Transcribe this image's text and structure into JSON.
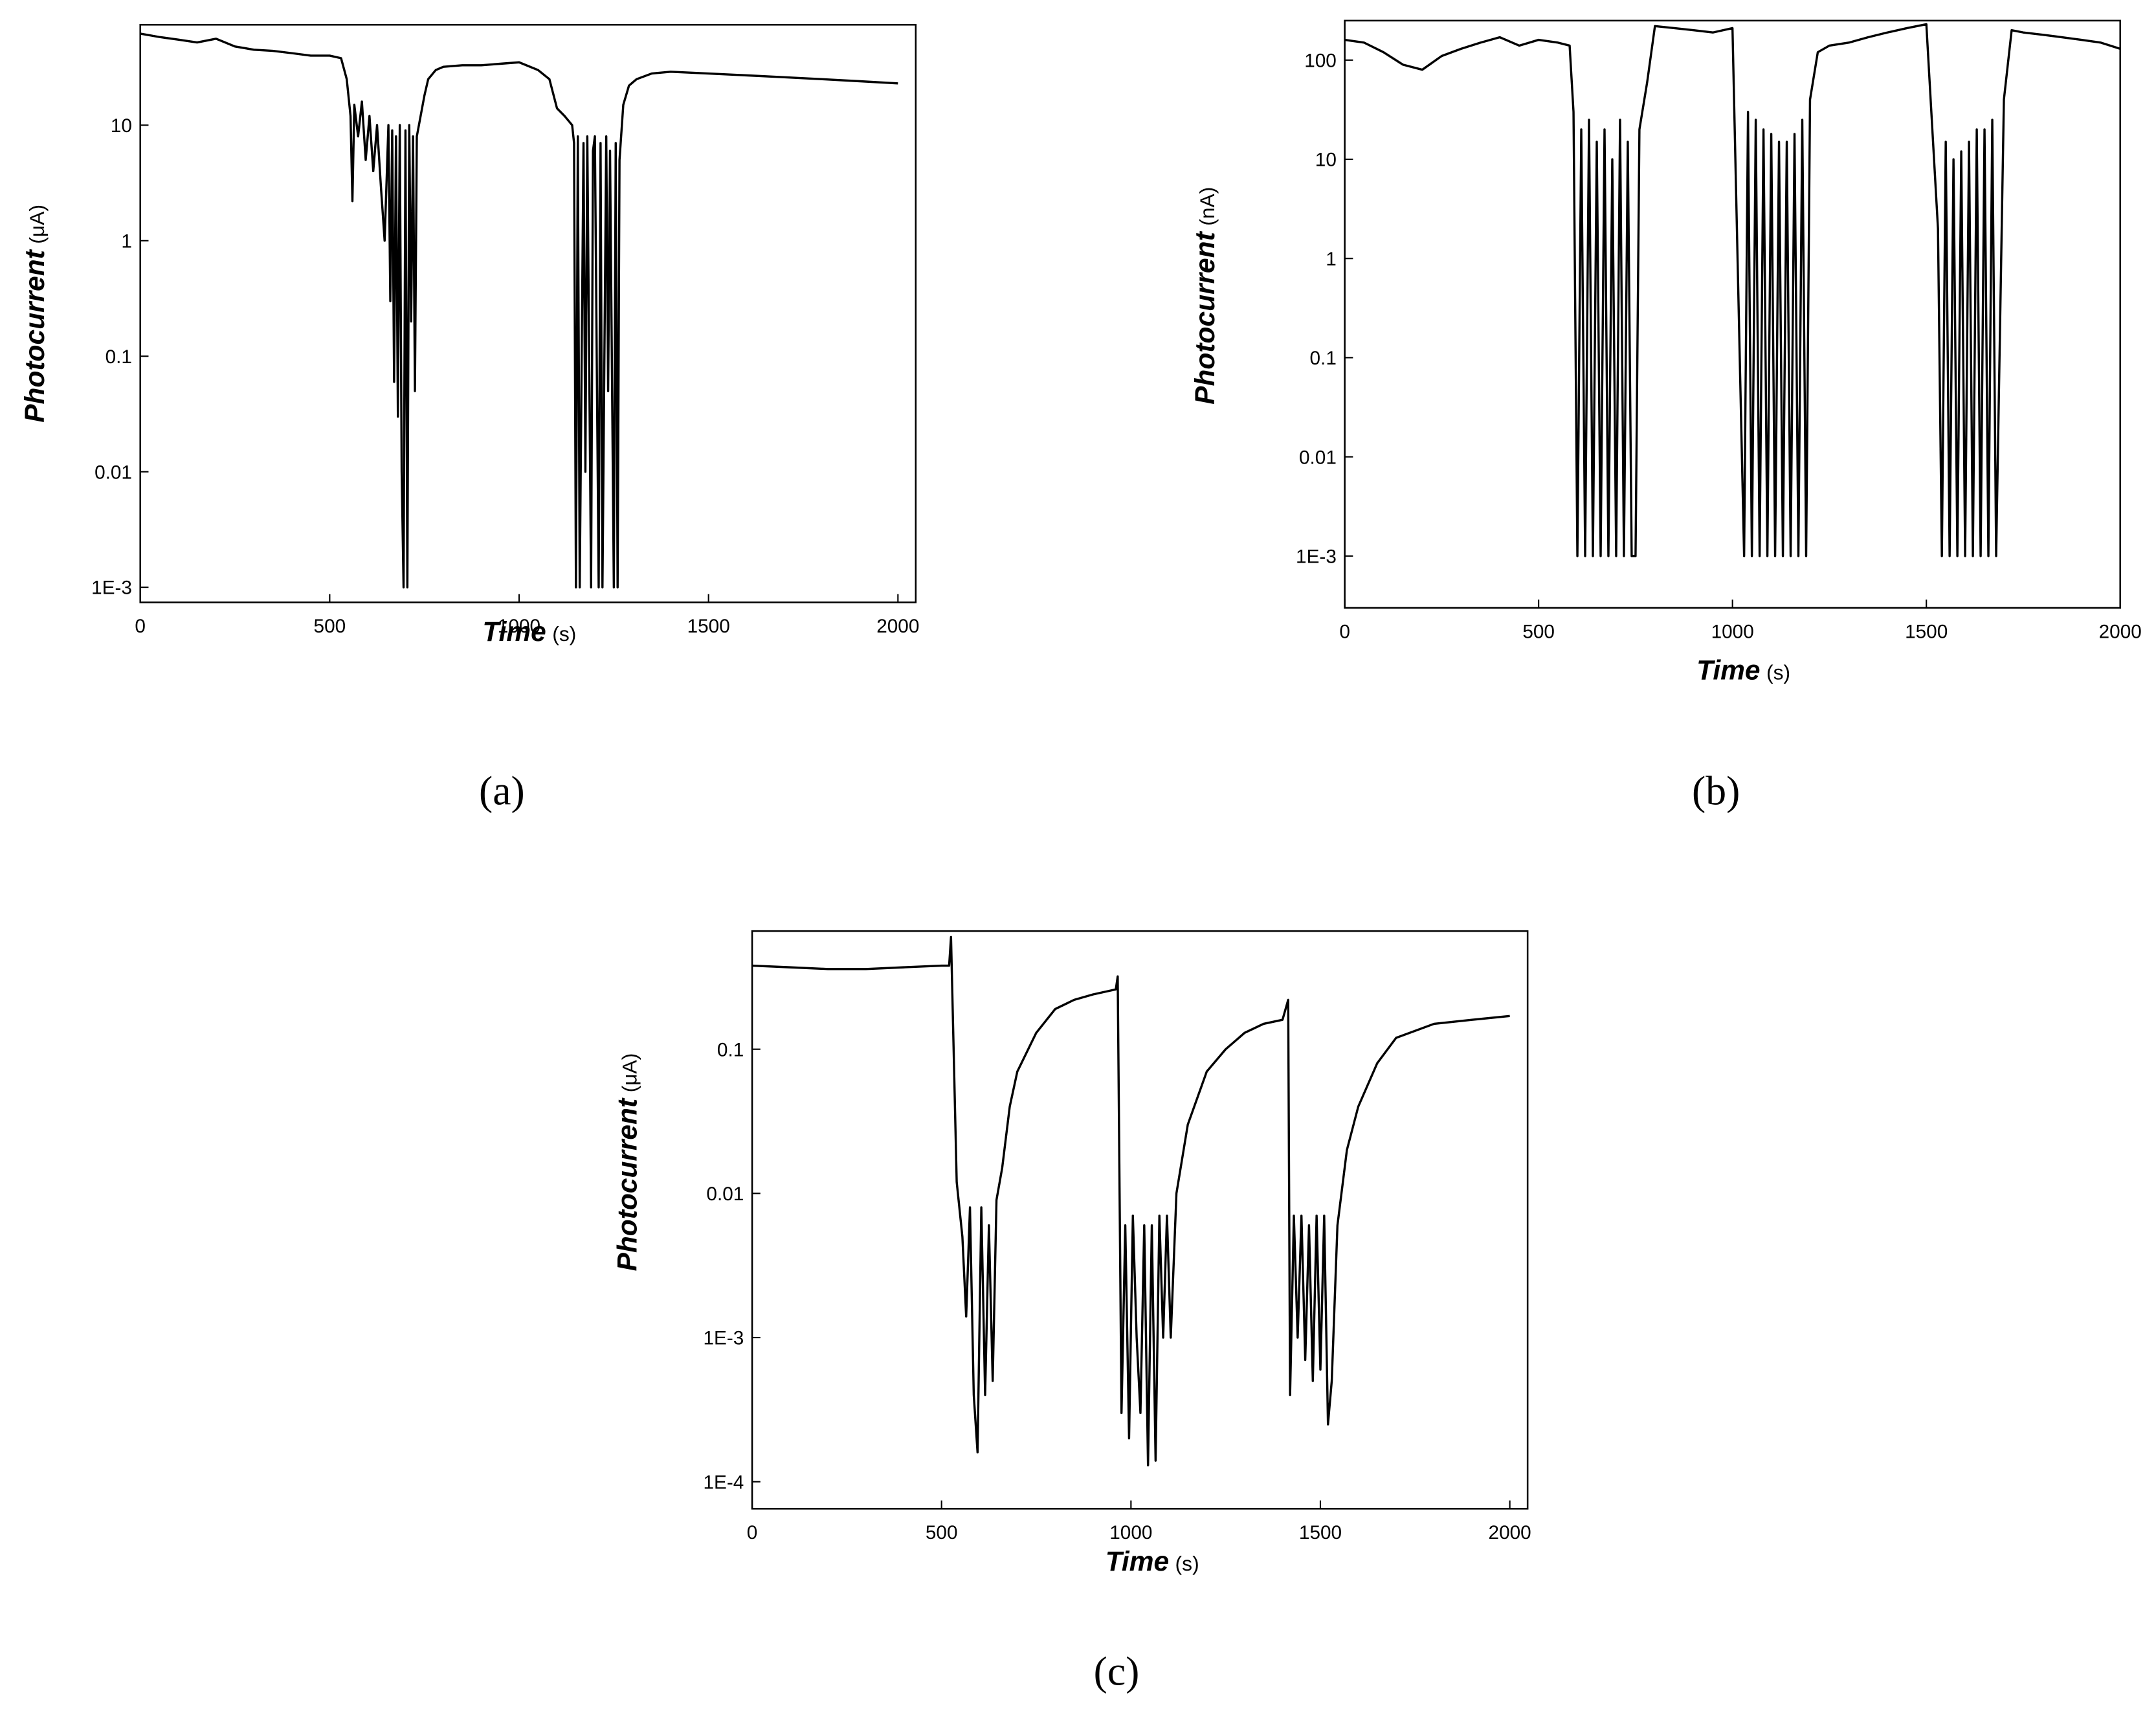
{
  "chart_data": [
    {
      "type": "line",
      "panel_label": "(a)",
      "xlabel": "Time",
      "xunit": "(s)",
      "ylabel": "Photocurrent",
      "yunit": "(μA)",
      "ylog": true,
      "color": "#000000",
      "xlim": [
        0,
        2047
      ],
      "xticks": [
        0,
        500,
        1000,
        1500,
        2000
      ],
      "ylim": [
        0.00074,
        74
      ],
      "yticks": [
        {
          "value": 0.001,
          "label": "1E-3"
        },
        0.01,
        0.1,
        1,
        10
      ],
      "x": [
        0,
        50,
        100,
        150,
        200,
        250,
        300,
        350,
        400,
        450,
        500,
        530,
        545,
        555,
        560,
        565,
        575,
        585,
        595,
        605,
        615,
        625,
        635,
        645,
        655,
        660,
        665,
        670,
        675,
        680,
        685,
        690,
        695,
        700,
        705,
        710,
        715,
        720,
        725,
        730,
        740,
        750,
        760,
        780,
        800,
        850,
        900,
        950,
        1000,
        1050,
        1080,
        1100,
        1120,
        1140,
        1145,
        1150,
        1155,
        1160,
        1170,
        1175,
        1180,
        1190,
        1195,
        1200,
        1210,
        1215,
        1220,
        1230,
        1235,
        1240,
        1250,
        1255,
        1260,
        1265,
        1275,
        1290,
        1310,
        1350,
        1400,
        1500,
        1600,
        1700,
        1800,
        1900,
        2000
      ],
      "values": [
        62,
        58,
        55,
        52,
        56,
        48,
        45,
        44,
        42,
        40,
        40,
        38,
        25,
        12,
        2.2,
        15,
        8,
        16,
        5,
        12,
        4,
        10,
        3,
        1,
        10,
        0.3,
        9,
        0.06,
        8,
        0.03,
        10,
        0.01,
        0.001,
        9,
        0.001,
        10,
        0.2,
        8,
        0.05,
        8,
        12,
        18,
        25,
        30,
        32,
        33,
        33,
        34,
        35,
        30,
        25,
        14,
        12,
        10,
        7,
        0.001,
        8,
        0.001,
        7,
        0.01,
        8,
        0.001,
        6,
        8,
        0.001,
        7,
        0.001,
        8,
        0.05,
        6,
        0.001,
        7,
        0.001,
        5,
        15,
        22,
        25,
        28,
        29,
        28,
        27,
        26,
        25,
        24,
        23
      ]
    },
    {
      "type": "line",
      "panel_label": "(b)",
      "xlabel": "Time",
      "xunit": "(s)",
      "ylabel": "Photocurrent",
      "yunit": "(nA)",
      "ylog": true,
      "color": "#000000",
      "xlim": [
        0,
        2000
      ],
      "xticks": [
        0,
        500,
        1000,
        1500,
        2000
      ],
      "ylim": [
        0.0003,
        250
      ],
      "yticks": [
        {
          "value": 0.001,
          "label": "1E-3"
        },
        0.01,
        0.1,
        1,
        10,
        100
      ],
      "x": [
        0,
        50,
        100,
        150,
        200,
        250,
        300,
        350,
        400,
        450,
        500,
        550,
        580,
        590,
        600,
        610,
        620,
        630,
        640,
        650,
        660,
        670,
        680,
        690,
        700,
        710,
        720,
        730,
        740,
        750,
        760,
        780,
        800,
        850,
        900,
        950,
        1000,
        1030,
        1040,
        1050,
        1060,
        1070,
        1080,
        1090,
        1100,
        1110,
        1120,
        1130,
        1140,
        1150,
        1160,
        1170,
        1180,
        1190,
        1200,
        1220,
        1250,
        1300,
        1350,
        1400,
        1450,
        1500,
        1530,
        1540,
        1550,
        1560,
        1570,
        1580,
        1590,
        1600,
        1610,
        1620,
        1630,
        1640,
        1650,
        1660,
        1670,
        1680,
        1700,
        1720,
        1750,
        1800,
        1850,
        1900,
        1950,
        2000
      ],
      "values": [
        160,
        150,
        120,
        90,
        80,
        110,
        130,
        150,
        170,
        140,
        160,
        150,
        140,
        30,
        0.001,
        20,
        0.001,
        25,
        0.001,
        15,
        0.001,
        20,
        0.001,
        10,
        0.001,
        25,
        0.001,
        15,
        0.001,
        0.001,
        20,
        60,
        220,
        210,
        200,
        190,
        210,
        0.001,
        30,
        0.001,
        25,
        0.001,
        20,
        0.001,
        18,
        0.001,
        15,
        0.001,
        15,
        0.001,
        18,
        0.001,
        25,
        0.001,
        40,
        120,
        140,
        150,
        170,
        190,
        210,
        230,
        2,
        0.001,
        15,
        0.001,
        10,
        0.001,
        12,
        0.001,
        15,
        0.001,
        20,
        0.001,
        20,
        0.001,
        25,
        0.001,
        40,
        200,
        190,
        180,
        170,
        160,
        150,
        130
      ]
    },
    {
      "type": "line",
      "panel_label": "(c)",
      "xlabel": "Time",
      "xunit": "(s)",
      "ylabel": "Photocurrent",
      "yunit": "(μA)",
      "ylog": true,
      "color": "#000000",
      "xlim": [
        0,
        2047
      ],
      "xticks": [
        0,
        500,
        1000,
        1500,
        2000
      ],
      "ylim": [
        6.5e-05,
        0.66
      ],
      "yticks": [
        {
          "value": 0.0001,
          "label": "1E-4"
        },
        {
          "value": 0.001,
          "label": "1E-3"
        },
        0.01,
        0.1
      ],
      "x": [
        0,
        100,
        200,
        300,
        400,
        500,
        520,
        525,
        540,
        555,
        565,
        575,
        585,
        595,
        605,
        615,
        625,
        635,
        645,
        660,
        680,
        700,
        750,
        800,
        850,
        900,
        960,
        965,
        975,
        985,
        995,
        1005,
        1015,
        1025,
        1035,
        1045,
        1055,
        1065,
        1075,
        1085,
        1095,
        1105,
        1120,
        1150,
        1200,
        1250,
        1300,
        1350,
        1400,
        1415,
        1420,
        1430,
        1440,
        1450,
        1460,
        1470,
        1480,
        1490,
        1500,
        1510,
        1520,
        1530,
        1545,
        1570,
        1600,
        1650,
        1700,
        1800,
        1900,
        2000
      ],
      "values": [
        0.38,
        0.37,
        0.36,
        0.36,
        0.37,
        0.38,
        0.38,
        0.6,
        0.012,
        0.005,
        0.0014,
        0.008,
        0.0004,
        0.00016,
        0.008,
        0.0004,
        0.006,
        0.0005,
        0.009,
        0.015,
        0.04,
        0.07,
        0.13,
        0.19,
        0.22,
        0.24,
        0.26,
        0.32,
        0.0003,
        0.006,
        0.0002,
        0.007,
        0.001,
        0.0003,
        0.006,
        0.00013,
        0.006,
        0.00014,
        0.007,
        0.001,
        0.007,
        0.001,
        0.01,
        0.03,
        0.07,
        0.1,
        0.13,
        0.15,
        0.16,
        0.22,
        0.0004,
        0.007,
        0.001,
        0.007,
        0.0007,
        0.006,
        0.0005,
        0.007,
        0.0006,
        0.007,
        0.00025,
        0.0005,
        0.006,
        0.02,
        0.04,
        0.08,
        0.12,
        0.15,
        0.16,
        0.17
      ]
    }
  ]
}
